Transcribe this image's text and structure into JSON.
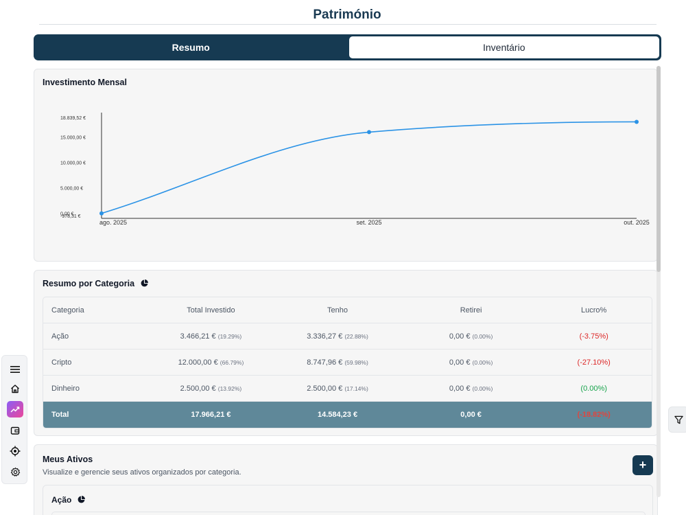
{
  "page": {
    "title": "Património"
  },
  "tabs": [
    {
      "label": "Resumo",
      "active": true
    },
    {
      "label": "Inventário",
      "active": false
    }
  ],
  "monthly": {
    "title": "Investimento Mensal",
    "chart_data": {
      "type": "line",
      "title": "Investimento Mensal",
      "x": [
        "ago. 2025",
        "set. 2025",
        "out. 2025"
      ],
      "series": [
        {
          "values": [
            0,
            15950,
            17966.21
          ]
        }
      ],
      "ytick_labels": [
        "-978,31 €",
        "0,00 €",
        "5.000,00 €",
        "10.000,00 €",
        "15.000,00 €",
        "18.839,52 €"
      ],
      "yticks": [
        -978.31,
        0,
        5000,
        10000,
        15000,
        18839.52
      ],
      "ylim": [
        -978.31,
        18839.52
      ],
      "color": "#2b93e6",
      "grid": false
    }
  },
  "category_summary": {
    "title": "Resumo por Categoria",
    "icon": "pie-chart-icon",
    "headers": [
      "Categoria",
      "Total Investido",
      "Tenho",
      "Retirei",
      "Lucro%"
    ],
    "rows": [
      {
        "name": "Ação",
        "invested": "3.466,21 €",
        "invested_pct": "(19.29%)",
        "have": "3.336,27 €",
        "have_pct": "(22.88%)",
        "withdrawn": "0,00 €",
        "withdrawn_pct": "(0.00%)",
        "profit": "(-3.75%)",
        "profit_status": "neg"
      },
      {
        "name": "Cripto",
        "invested": "12.000,00 €",
        "invested_pct": "(66.79%)",
        "have": "8.747,96 €",
        "have_pct": "(59.98%)",
        "withdrawn": "0,00 €",
        "withdrawn_pct": "(0.00%)",
        "profit": "(-27.10%)",
        "profit_status": "neg"
      },
      {
        "name": "Dinheiro",
        "invested": "2.500,00 €",
        "invested_pct": "(13.92%)",
        "have": "2.500,00 €",
        "have_pct": "(17.14%)",
        "withdrawn": "0,00 €",
        "withdrawn_pct": "(0.00%)",
        "profit": "(0.00%)",
        "profit_status": "pos"
      }
    ],
    "total": {
      "label": "Total",
      "invested": "17.966,21 €",
      "have": "14.584,23 €",
      "withdrawn": "0,00 €",
      "profit": "(-18.82%)"
    }
  },
  "assets": {
    "title": "Meus Ativos",
    "subtitle": "Visualize e gerencie seus ativos organizados por categoria.",
    "add_label": "+",
    "group_title": "Ação"
  },
  "nav": [
    "menu-icon",
    "home-icon",
    "trending-up-icon",
    "wallet-icon",
    "target-icon",
    "settings-icon"
  ],
  "colors": {
    "primary": "#163a52",
    "accent": "#2b93e6",
    "total_row": "#5f8899",
    "negative": "#dc2626",
    "positive": "#16a34a"
  }
}
